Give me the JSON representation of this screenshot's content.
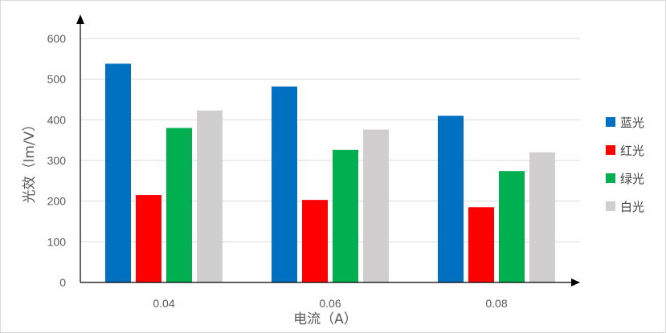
{
  "chart_data": {
    "type": "bar",
    "title": "",
    "xlabel": "电流（A）",
    "ylabel": "光效（lm/V）",
    "categories": [
      "0.04",
      "0.06",
      "0.08"
    ],
    "series": [
      {
        "name": "蓝光",
        "color": "#0070c0",
        "values": [
          538,
          482,
          410
        ]
      },
      {
        "name": "红光",
        "color": "#ff0000",
        "values": [
          215,
          203,
          185
        ]
      },
      {
        "name": "绿光",
        "color": "#00b050",
        "values": [
          380,
          326,
          274
        ]
      },
      {
        "name": "白光",
        "color": "#d0cece",
        "values": [
          423,
          376,
          320
        ]
      }
    ],
    "ylim": [
      0,
      600
    ],
    "yticks": [
      "0",
      "100",
      "200",
      "300",
      "400",
      "500",
      "600"
    ],
    "grid": true,
    "legend_position": "right"
  }
}
